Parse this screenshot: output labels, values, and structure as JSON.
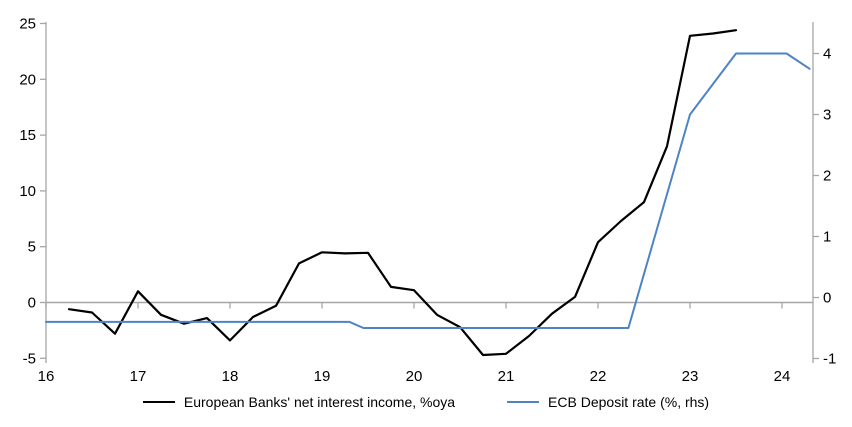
{
  "chart_data": {
    "type": "line",
    "title": "",
    "x_ticks": [
      16,
      17,
      18,
      19,
      20,
      21,
      22,
      23,
      24
    ],
    "left_axis": {
      "ticks": [
        25,
        20,
        15,
        10,
        5,
        0,
        -5
      ],
      "range": [
        -5,
        25
      ]
    },
    "right_axis": {
      "ticks": [
        4,
        3,
        2,
        1,
        0,
        -1
      ],
      "range": [
        -1,
        4
      ]
    },
    "axis_color": "#A6A6A6",
    "zero_line_color": "#A6A6A6",
    "legend_position": "bottom-center",
    "grid": "off",
    "series": [
      {
        "name": "European Banks' net interest income, %oya",
        "axis": "left",
        "color": "#000000",
        "points": [
          [
            16.25,
            -0.6
          ],
          [
            16.5,
            -0.9
          ],
          [
            16.75,
            -2.8
          ],
          [
            17.0,
            1.0
          ],
          [
            17.25,
            -1.1
          ],
          [
            17.5,
            -1.9
          ],
          [
            17.75,
            -1.4
          ],
          [
            18.0,
            -3.4
          ],
          [
            18.25,
            -1.3
          ],
          [
            18.5,
            -0.3
          ],
          [
            18.75,
            3.5
          ],
          [
            19.0,
            4.5
          ],
          [
            19.25,
            4.4
          ],
          [
            19.5,
            4.45
          ],
          [
            19.75,
            1.4
          ],
          [
            20.0,
            1.1
          ],
          [
            20.25,
            -1.1
          ],
          [
            20.5,
            -2.2
          ],
          [
            20.75,
            -4.7
          ],
          [
            21.0,
            -4.6
          ],
          [
            21.25,
            -3.0
          ],
          [
            21.5,
            -1.0
          ],
          [
            21.75,
            0.5
          ],
          [
            22.0,
            5.4
          ],
          [
            22.25,
            7.3
          ],
          [
            22.5,
            9.0
          ],
          [
            22.75,
            14.0
          ],
          [
            23.0,
            23.9
          ],
          [
            23.25,
            24.1
          ],
          [
            23.5,
            24.4
          ]
        ]
      },
      {
        "name": "ECB Deposit rate (%, rhs)",
        "axis": "right",
        "color": "#4E84C4",
        "points": [
          [
            16.0,
            -0.4
          ],
          [
            19.3,
            -0.4
          ],
          [
            19.45,
            -0.5
          ],
          [
            22.33,
            -0.5
          ],
          [
            23.0,
            3.0
          ],
          [
            23.5,
            4.0
          ],
          [
            24.05,
            4.0
          ],
          [
            24.3,
            3.75
          ]
        ]
      }
    ]
  }
}
